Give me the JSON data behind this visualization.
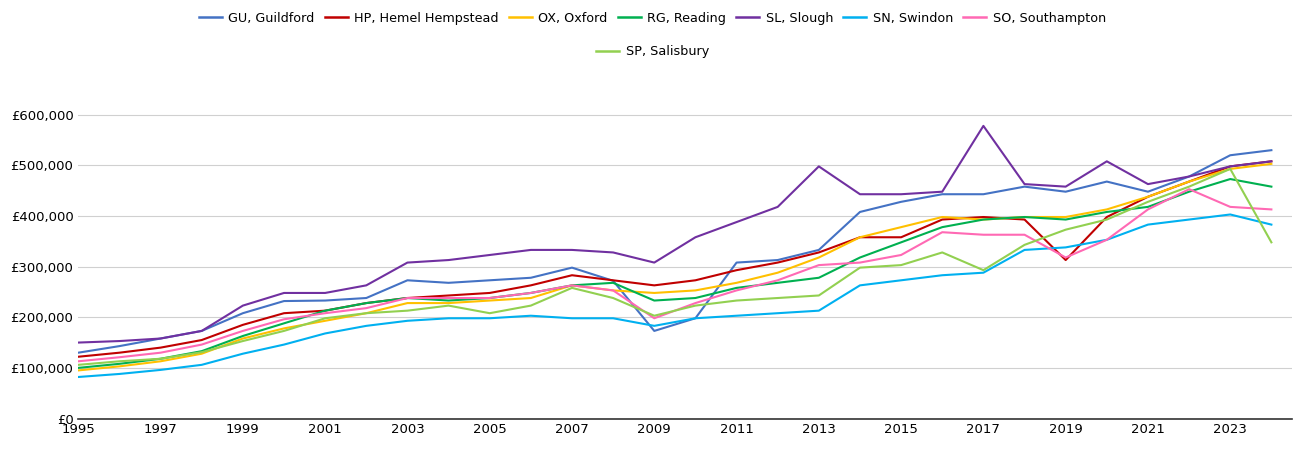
{
  "years": [
    1995,
    1996,
    1997,
    1998,
    1999,
    2000,
    2001,
    2002,
    2003,
    2004,
    2005,
    2006,
    2007,
    2008,
    2009,
    2010,
    2011,
    2012,
    2013,
    2014,
    2015,
    2016,
    2017,
    2018,
    2019,
    2020,
    2021,
    2022,
    2023,
    2024
  ],
  "series": {
    "GU, Guildford": {
      "color": "#4472C4",
      "values": [
        130000,
        143000,
        158000,
        173000,
        208000,
        232000,
        233000,
        238000,
        273000,
        268000,
        273000,
        278000,
        298000,
        272000,
        173000,
        198000,
        308000,
        313000,
        333000,
        408000,
        428000,
        443000,
        443000,
        458000,
        448000,
        468000,
        448000,
        478000,
        520000,
        530000
      ]
    },
    "HP, Hemel Hempstead": {
      "color": "#C00000",
      "values": [
        122000,
        130000,
        140000,
        155000,
        185000,
        208000,
        213000,
        228000,
        238000,
        243000,
        248000,
        263000,
        283000,
        273000,
        263000,
        273000,
        293000,
        308000,
        328000,
        358000,
        358000,
        393000,
        398000,
        393000,
        313000,
        398000,
        438000,
        468000,
        498000,
        508000
      ]
    },
    "OX, Oxford": {
      "color": "#FFC000",
      "values": [
        95000,
        103000,
        113000,
        128000,
        158000,
        178000,
        193000,
        208000,
        228000,
        228000,
        233000,
        238000,
        263000,
        253000,
        248000,
        253000,
        268000,
        288000,
        318000,
        358000,
        378000,
        398000,
        393000,
        398000,
        398000,
        413000,
        438000,
        468000,
        493000,
        503000
      ]
    },
    "RG, Reading": {
      "color": "#00B050",
      "values": [
        100000,
        108000,
        118000,
        133000,
        163000,
        188000,
        213000,
        228000,
        238000,
        233000,
        238000,
        248000,
        263000,
        268000,
        233000,
        238000,
        258000,
        268000,
        278000,
        318000,
        348000,
        378000,
        393000,
        398000,
        393000,
        408000,
        418000,
        448000,
        473000,
        458000
      ]
    },
    "SL, Slough": {
      "color": "#7030A0",
      "values": [
        150000,
        153000,
        158000,
        173000,
        223000,
        248000,
        248000,
        263000,
        308000,
        313000,
        323000,
        333000,
        333000,
        328000,
        308000,
        358000,
        388000,
        418000,
        498000,
        443000,
        443000,
        448000,
        578000,
        463000,
        458000,
        508000,
        463000,
        478000,
        498000,
        508000
      ]
    },
    "SN, Swindon": {
      "color": "#00B0F0",
      "values": [
        82000,
        88000,
        96000,
        106000,
        128000,
        146000,
        168000,
        183000,
        193000,
        198000,
        198000,
        203000,
        198000,
        198000,
        183000,
        198000,
        203000,
        208000,
        213000,
        263000,
        273000,
        283000,
        288000,
        333000,
        338000,
        353000,
        383000,
        393000,
        403000,
        383000
      ]
    },
    "SO, Southampton": {
      "color": "#FF69B4",
      "values": [
        113000,
        121000,
        130000,
        146000,
        173000,
        196000,
        208000,
        218000,
        238000,
        238000,
        238000,
        248000,
        263000,
        253000,
        198000,
        228000,
        253000,
        273000,
        303000,
        308000,
        323000,
        368000,
        363000,
        363000,
        318000,
        353000,
        413000,
        453000,
        418000,
        413000
      ]
    },
    "SP, Salisbury": {
      "color": "#92D050",
      "values": [
        106000,
        113000,
        118000,
        131000,
        153000,
        173000,
        198000,
        208000,
        213000,
        223000,
        208000,
        223000,
        258000,
        238000,
        203000,
        223000,
        233000,
        238000,
        243000,
        298000,
        303000,
        328000,
        293000,
        343000,
        373000,
        393000,
        428000,
        458000,
        493000,
        348000
      ]
    }
  },
  "ylim": [
    0,
    640000
  ],
  "yticks": [
    0,
    100000,
    200000,
    300000,
    400000,
    500000,
    600000
  ],
  "xticks": [
    1995,
    1997,
    1999,
    2001,
    2003,
    2005,
    2007,
    2009,
    2011,
    2013,
    2015,
    2017,
    2019,
    2021,
    2023
  ],
  "xlim": [
    1995,
    2024.5
  ],
  "background_color": "#ffffff",
  "grid_color": "#d0d0d0",
  "legend_row1": [
    "GU, Guildford",
    "HP, Hemel Hempstead",
    "OX, Oxford",
    "RG, Reading",
    "SL, Slough",
    "SN, Swindon",
    "SO, Southampton"
  ],
  "legend_row2": [
    "SP, Salisbury"
  ]
}
